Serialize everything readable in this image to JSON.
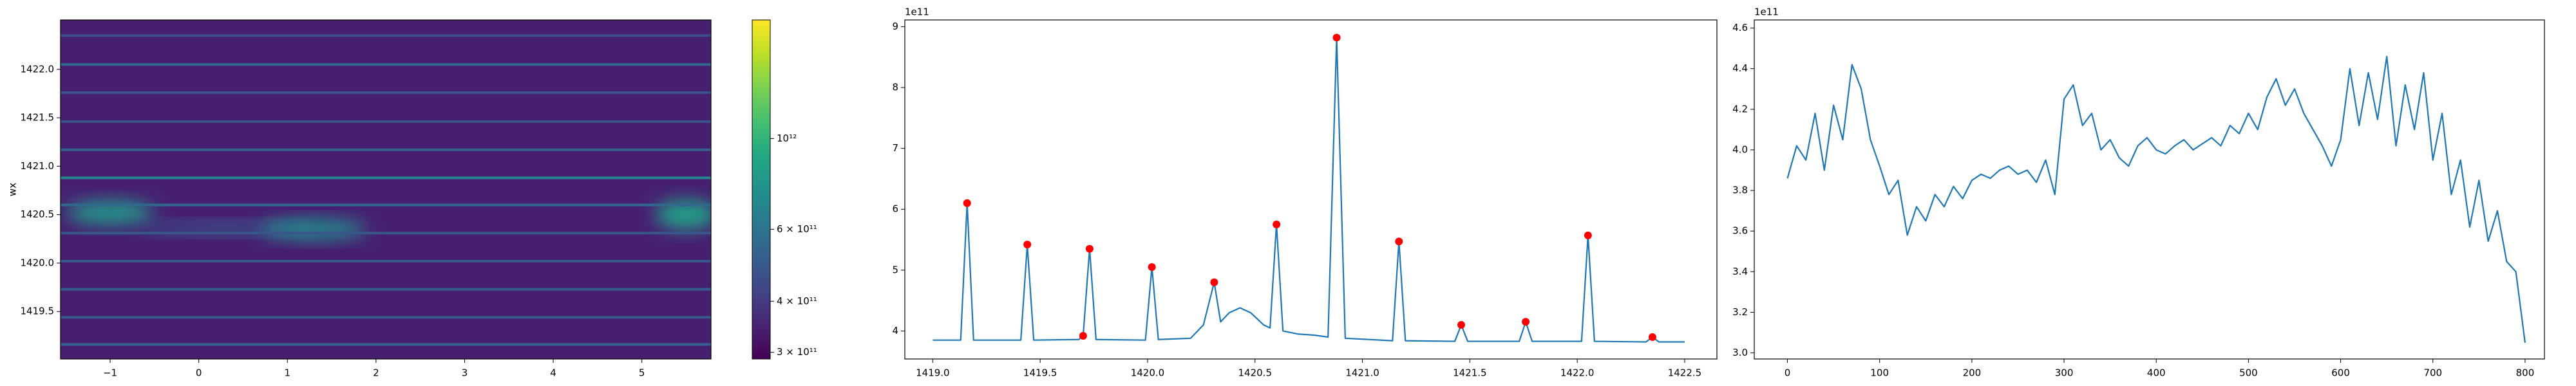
{
  "chart_data": [
    {
      "type": "heatmap",
      "ylabel": "wx",
      "colormap": "viridis",
      "xlim": [
        -1.56,
        5.78
      ],
      "ylim": [
        1419.01,
        1422.51
      ],
      "xticks": [
        {
          "value": -1,
          "label": "−1"
        },
        0,
        1,
        2,
        3,
        4,
        5
      ],
      "yticks": [
        1419.5,
        {
          "value": 1420.0,
          "label": "1420.0"
        },
        1420.5,
        {
          "value": 1421.0,
          "label": "1421.0"
        },
        1421.5,
        {
          "value": 1422.0,
          "label": "1422.0"
        }
      ],
      "background": 340000000000,
      "lines": [
        {
          "y": 1419.16,
          "value": 520000000000
        },
        {
          "y": 1419.44,
          "value": 500000000000
        },
        {
          "y": 1419.73,
          "value": 510000000000
        },
        {
          "y": 1420.02,
          "value": 490000000000
        },
        {
          "y": 1420.31,
          "value": 480000000000
        },
        {
          "y": 1420.6,
          "value": 550000000000
        },
        {
          "y": 1420.88,
          "value": 700000000000
        },
        {
          "y": 1421.17,
          "value": 530000000000
        },
        {
          "y": 1421.46,
          "value": 460000000000
        },
        {
          "y": 1421.76,
          "value": 470000000000
        },
        {
          "y": 1422.05,
          "value": 550000000000
        },
        {
          "y": 1422.35,
          "value": 450000000000
        }
      ],
      "blobs": [
        {
          "x": -1.0,
          "y": 1420.52,
          "dx": 0.5,
          "dy": 0.12,
          "value": 800000000000
        },
        {
          "x": 0.3,
          "y": 1420.36,
          "dx": 1.0,
          "dy": 0.06,
          "value": 500000000000
        },
        {
          "x": 1.3,
          "y": 1420.35,
          "dx": 0.6,
          "dy": 0.1,
          "value": 750000000000
        },
        {
          "x": 5.5,
          "y": 1420.5,
          "dx": 0.35,
          "dy": 0.15,
          "value": 850000000000
        }
      ],
      "colorbar": {
        "scale": "log",
        "lim": [
          289000000000,
          1950000000000
        ],
        "ticks": [
          {
            "value": 300000000000,
            "label": "3 × 10¹¹"
          },
          {
            "value": 400000000000,
            "label": "4 × 10¹¹"
          },
          {
            "value": 600000000000,
            "label": "6 × 10¹¹"
          },
          {
            "value": 1000000000000,
            "label": "10¹²"
          }
        ]
      }
    },
    {
      "type": "line",
      "y_offset_label": "1e11",
      "xlim": [
        1418.87,
        1422.65
      ],
      "ylim": [
        3.54,
        9.11
      ],
      "xticks": [
        {
          "value": 1419.0,
          "label": "1419.0"
        },
        1419.5,
        {
          "value": 1420.0,
          "label": "1420.0"
        },
        1420.5,
        {
          "value": 1421.0,
          "label": "1421.0"
        },
        1421.5,
        {
          "value": 1422.0,
          "label": "1422.0"
        },
        1422.5
      ],
      "yticks": [
        4,
        5,
        6,
        7,
        8,
        9
      ],
      "series": [
        {
          "color": "#1f77b4",
          "x": [
            1419.0,
            1419.13,
            1419.16,
            1419.19,
            1419.41,
            1419.44,
            1419.47,
            1419.68,
            1419.7,
            1419.73,
            1419.76,
            1419.99,
            1420.02,
            1420.05,
            1420.2,
            1420.26,
            1420.31,
            1420.34,
            1420.38,
            1420.43,
            1420.48,
            1420.54,
            1420.57,
            1420.6,
            1420.63,
            1420.7,
            1420.78,
            1420.84,
            1420.88,
            1420.92,
            1421.14,
            1421.17,
            1421.2,
            1421.43,
            1421.46,
            1421.49,
            1421.73,
            1421.76,
            1421.79,
            1422.02,
            1422.05,
            1422.08,
            1422.32,
            1422.35,
            1422.38,
            1422.5
          ],
          "values": [
            3.85,
            3.85,
            6.1,
            3.85,
            3.85,
            5.42,
            3.85,
            3.86,
            3.92,
            5.35,
            3.86,
            3.85,
            5.05,
            3.86,
            3.88,
            4.1,
            4.8,
            4.15,
            4.3,
            4.38,
            4.3,
            4.1,
            4.05,
            5.75,
            4.0,
            3.95,
            3.93,
            3.9,
            8.82,
            3.88,
            3.84,
            5.47,
            3.84,
            3.83,
            4.1,
            3.83,
            3.83,
            4.15,
            3.83,
            3.83,
            5.57,
            3.83,
            3.82,
            3.9,
            3.82,
            3.82
          ]
        }
      ],
      "markers": {
        "color": "#ff0000",
        "x": [
          1419.16,
          1419.44,
          1419.7,
          1419.73,
          1420.02,
          1420.31,
          1420.6,
          1420.88,
          1421.17,
          1421.46,
          1421.76,
          1422.05,
          1422.35
        ],
        "values": [
          6.1,
          5.42,
          3.92,
          5.35,
          5.05,
          4.8,
          5.75,
          8.82,
          5.47,
          4.1,
          4.15,
          5.57,
          3.9
        ]
      }
    },
    {
      "type": "line",
      "y_offset_label": "1e11",
      "xlim": [
        -36,
        821
      ],
      "ylim": [
        2.97,
        4.64
      ],
      "xticks": [
        0,
        100,
        200,
        300,
        400,
        500,
        600,
        700,
        800
      ],
      "yticks": [
        {
          "value": 3.0,
          "label": "3.0"
        },
        3.2,
        3.4,
        3.6,
        3.8,
        {
          "value": 4.0,
          "label": "4.0"
        },
        4.2,
        4.4,
        4.6
      ],
      "series": [
        {
          "color": "#1f77b4",
          "x": [
            0,
            10,
            20,
            30,
            40,
            50,
            60,
            70,
            80,
            90,
            100,
            110,
            120,
            130,
            140,
            150,
            160,
            170,
            180,
            190,
            200,
            210,
            220,
            230,
            240,
            250,
            260,
            270,
            280,
            290,
            300,
            310,
            320,
            330,
            340,
            350,
            360,
            370,
            380,
            390,
            400,
            410,
            420,
            430,
            440,
            450,
            460,
            470,
            480,
            490,
            500,
            510,
            520,
            530,
            540,
            550,
            560,
            570,
            580,
            590,
            600,
            610,
            620,
            630,
            640,
            650,
            660,
            670,
            680,
            690,
            700,
            710,
            720,
            730,
            740,
            750,
            760,
            770,
            780,
            790,
            800
          ],
          "values": [
            3.86,
            4.02,
            3.95,
            4.18,
            3.9,
            4.22,
            4.05,
            4.42,
            4.3,
            4.05,
            3.92,
            3.78,
            3.85,
            3.58,
            3.72,
            3.65,
            3.78,
            3.72,
            3.82,
            3.76,
            3.85,
            3.88,
            3.86,
            3.9,
            3.92,
            3.88,
            3.9,
            3.84,
            3.95,
            3.78,
            4.25,
            4.32,
            4.12,
            4.18,
            4.0,
            4.05,
            3.96,
            3.92,
            4.02,
            4.06,
            4.0,
            3.98,
            4.02,
            4.05,
            4.0,
            4.03,
            4.06,
            4.02,
            4.12,
            4.08,
            4.18,
            4.1,
            4.26,
            4.35,
            4.22,
            4.3,
            4.18,
            4.1,
            4.02,
            3.92,
            4.05,
            4.4,
            4.12,
            4.38,
            4.15,
            4.46,
            4.02,
            4.32,
            4.1,
            4.38,
            3.95,
            4.18,
            3.78,
            3.95,
            3.62,
            3.85,
            3.55,
            3.7,
            3.45,
            3.4,
            3.05
          ]
        }
      ]
    }
  ]
}
